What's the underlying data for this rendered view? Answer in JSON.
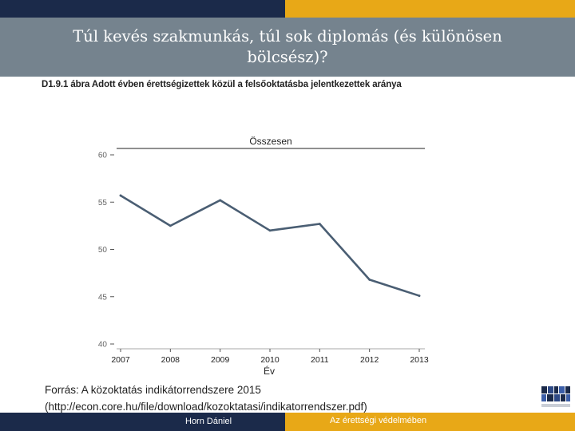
{
  "slide": {
    "title": "Túl kevés szakmunkás, túl sok diplomás (és különösen bölcsész)?",
    "figure_title": "D1.9.1 ábra Adott évben érettségizettek közül a felsőoktatásba jelentkezettek aránya",
    "source_line1": "Forrás: A közoktatás indikátorrendszere 2015",
    "source_line2": "(http://econ.core.hu/file/download/kozoktatasi/indikatorrendszer.pdf)",
    "footer_author": "Horn Dániel",
    "footer_motto": "Az érettségi védelmében"
  },
  "colors": {
    "line": "#4a5e73",
    "header_bg": "#75838e",
    "bar_dark": "#1b2a4a",
    "bar_gold": "#e8a817"
  },
  "chart_data": {
    "type": "line",
    "title": "Összesen",
    "xlabel": "Év",
    "ylabel": "",
    "x": [
      "2007",
      "2008",
      "2009",
      "2010",
      "2011",
      "2012",
      "2013"
    ],
    "series": [
      {
        "values": [
          55.7,
          52.5,
          55.2,
          52.0,
          52.7,
          46.8,
          45.1
        ]
      }
    ],
    "ylim": [
      40,
      60
    ],
    "yticks": [
      40,
      45,
      50,
      55,
      60
    ],
    "grid": false
  }
}
